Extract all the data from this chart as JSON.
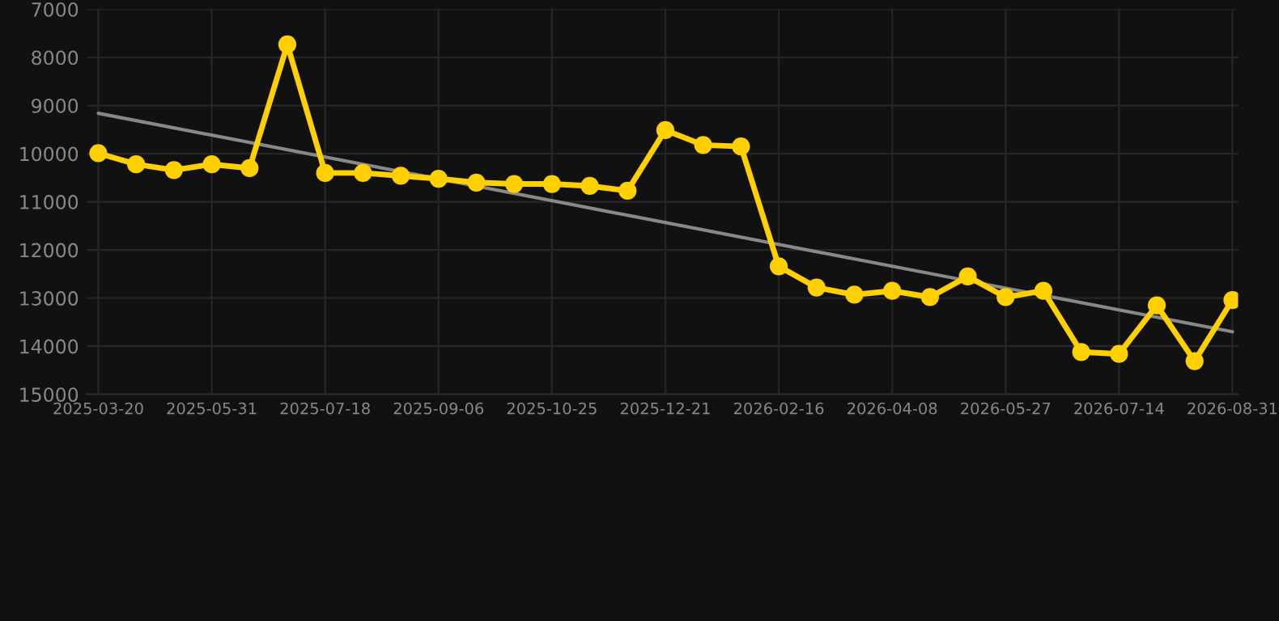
{
  "chart_data": {
    "type": "line",
    "categories": [
      "2025-03-20",
      null,
      null,
      "2025-05-31",
      null,
      null,
      "2025-07-18",
      null,
      null,
      "2025-09-06",
      null,
      null,
      "2025-10-25",
      null,
      null,
      "2025-12-21",
      null,
      null,
      "2026-02-16",
      null,
      null,
      "2026-04-08",
      null,
      null,
      "2026-05-27",
      null,
      null,
      "2026-07-14",
      null,
      null,
      "2026-08-31"
    ],
    "series": [
      {
        "color": "#ffd000",
        "marker": "circle",
        "values": [
          9990,
          10220,
          10340,
          10220,
          10300,
          7730,
          10400,
          10400,
          10460,
          10520,
          10600,
          10630,
          10630,
          10670,
          10770,
          9510,
          9820,
          9850,
          12340,
          12780,
          12930,
          12850,
          12980,
          12550,
          12980,
          12850,
          14120,
          14160,
          13150,
          14310,
          13040
        ]
      },
      {
        "color": "#888888",
        "marker": "none",
        "values": [
          9160,
          null,
          null,
          null,
          null,
          null,
          null,
          null,
          null,
          null,
          null,
          null,
          null,
          null,
          null,
          null,
          null,
          null,
          null,
          null,
          null,
          null,
          null,
          null,
          null,
          null,
          null,
          null,
          null,
          null,
          13700
        ]
      }
    ],
    "ylim": [
      15000,
      7000
    ],
    "yticks": [
      7000,
      8000,
      9000,
      10000,
      11000,
      12000,
      13000,
      14000,
      15000
    ],
    "grid": true,
    "line_style": "solid"
  }
}
